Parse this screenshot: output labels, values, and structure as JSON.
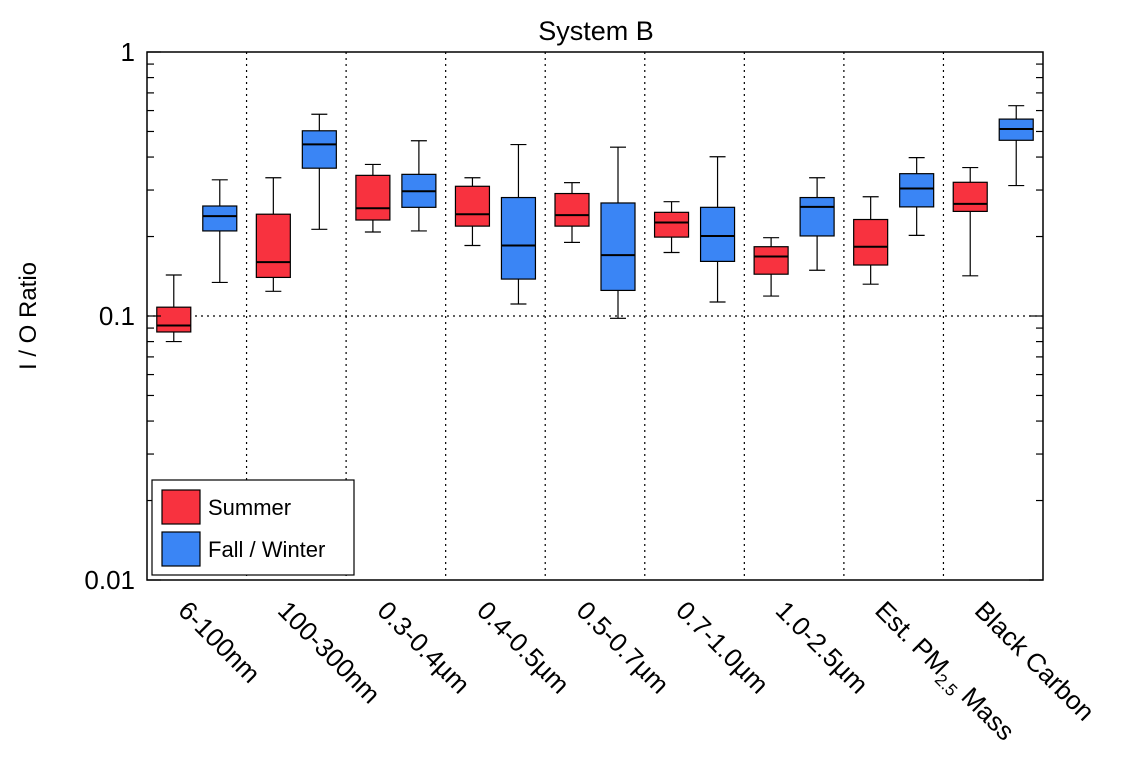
{
  "chart_data": {
    "type": "boxplot",
    "title": "System B",
    "ylabel": "I / O Ratio",
    "yscale": "log",
    "ylim": [
      0.01,
      1
    ],
    "yticks": [
      {
        "value": 0.01,
        "label": "0.01"
      },
      {
        "value": 0.1,
        "label": "0.1"
      },
      {
        "value": 1,
        "label": "1"
      }
    ],
    "gridlines": {
      "vertical_separators": "dotted",
      "horizontal_at": [
        0.1
      ]
    },
    "legend": {
      "position": "bottom-left"
    },
    "categories": [
      {
        "label": "6-100nm"
      },
      {
        "label": "100-300nm"
      },
      {
        "label": "0.3-0.4µm"
      },
      {
        "label": "0.4-0.5µm"
      },
      {
        "label": "0.5-0.7µm"
      },
      {
        "label": "0.7-1.0µm"
      },
      {
        "label": "1.0-2.5µm"
      },
      {
        "label": "Est. PM",
        "sub": "2.5",
        "suffix": " Mass"
      },
      {
        "label": "Black Carbon"
      }
    ],
    "series": [
      {
        "name": "Summer",
        "color": "#f8323f",
        "boxes": [
          {
            "min": 0.08,
            "q1": 0.087,
            "median": 0.092,
            "q3": 0.108,
            "max": 0.143
          },
          {
            "min": 0.124,
            "q1": 0.14,
            "median": 0.16,
            "q3": 0.243,
            "max": 0.334
          },
          {
            "min": 0.208,
            "q1": 0.231,
            "median": 0.256,
            "q3": 0.341,
            "max": 0.375
          },
          {
            "min": 0.185,
            "q1": 0.219,
            "median": 0.243,
            "q3": 0.31,
            "max": 0.334
          },
          {
            "min": 0.19,
            "q1": 0.219,
            "median": 0.241,
            "q3": 0.291,
            "max": 0.32
          },
          {
            "min": 0.174,
            "q1": 0.199,
            "median": 0.226,
            "q3": 0.247,
            "max": 0.271
          },
          {
            "min": 0.119,
            "q1": 0.144,
            "median": 0.168,
            "q3": 0.183,
            "max": 0.198
          },
          {
            "min": 0.132,
            "q1": 0.156,
            "median": 0.183,
            "q3": 0.232,
            "max": 0.283
          },
          {
            "min": 0.142,
            "q1": 0.249,
            "median": 0.266,
            "q3": 0.321,
            "max": 0.365
          }
        ]
      },
      {
        "name": "Fall / Winter",
        "color": "#3a85f5",
        "boxes": [
          {
            "min": 0.134,
            "q1": 0.21,
            "median": 0.239,
            "q3": 0.261,
            "max": 0.328
          },
          {
            "min": 0.213,
            "q1": 0.363,
            "median": 0.447,
            "q3": 0.503,
            "max": 0.581
          },
          {
            "min": 0.21,
            "q1": 0.258,
            "median": 0.297,
            "q3": 0.344,
            "max": 0.461
          },
          {
            "min": 0.111,
            "q1": 0.138,
            "median": 0.185,
            "q3": 0.281,
            "max": 0.446
          },
          {
            "min": 0.098,
            "q1": 0.125,
            "median": 0.17,
            "q3": 0.268,
            "max": 0.436
          },
          {
            "min": 0.113,
            "q1": 0.161,
            "median": 0.201,
            "q3": 0.258,
            "max": 0.401
          },
          {
            "min": 0.149,
            "q1": 0.201,
            "median": 0.259,
            "q3": 0.281,
            "max": 0.334
          },
          {
            "min": 0.202,
            "q1": 0.259,
            "median": 0.304,
            "q3": 0.346,
            "max": 0.398
          },
          {
            "min": 0.312,
            "q1": 0.463,
            "median": 0.511,
            "q3": 0.557,
            "max": 0.626
          }
        ]
      }
    ]
  }
}
